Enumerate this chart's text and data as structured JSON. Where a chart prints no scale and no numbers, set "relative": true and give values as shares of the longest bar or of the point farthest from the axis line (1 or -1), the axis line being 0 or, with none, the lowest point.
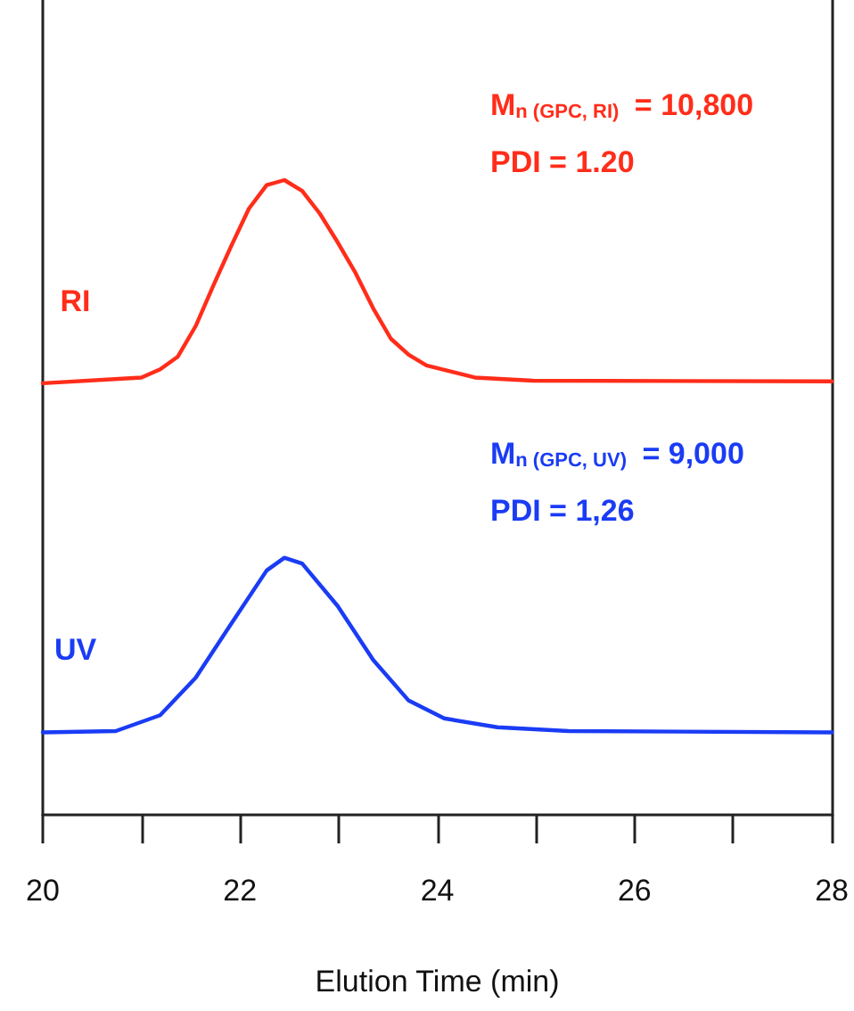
{
  "chart_data": {
    "type": "line",
    "relative": true,
    "xlabel": "Elution Time (min)",
    "xlim": [
      20,
      28
    ],
    "xticks": [
      20,
      {
        "value": 21,
        "label": null
      },
      22,
      {
        "value": 23,
        "label": null
      },
      24,
      {
        "value": 25,
        "label": null
      },
      26,
      {
        "value": 27,
        "label": null
      },
      28
    ],
    "grid": false,
    "legend": false,
    "marker": "none",
    "line_style": "solid",
    "series": [
      {
        "name": "RI",
        "color": "#ff2d1a",
        "x": [
          20,
          21,
          21.19,
          21.37,
          21.55,
          21.73,
          21.91,
          22.09,
          22.27,
          22.45,
          22.63,
          22.81,
          22.99,
          23.17,
          23.35,
          23.53,
          23.71,
          23.89,
          24.38,
          24.97,
          28
        ],
        "values": [
          0.68,
          0.689,
          0.702,
          0.722,
          0.77,
          0.834,
          0.896,
          0.955,
          0.992,
          1,
          0.983,
          0.947,
          0.902,
          0.854,
          0.798,
          0.75,
          0.725,
          0.708,
          0.689,
          0.684,
          0.683
        ]
      },
      {
        "name": "UV",
        "color": "#1a3cf5",
        "x": [
          20,
          20.74,
          21.19,
          21.55,
          21.91,
          22.27,
          22.45,
          22.63,
          22.99,
          23.35,
          23.71,
          24.07,
          24.61,
          25.33,
          28
        ],
        "values": [
          0.13,
          0.132,
          0.157,
          0.216,
          0.301,
          0.385,
          0.405,
          0.396,
          0.329,
          0.244,
          0.18,
          0.152,
          0.138,
          0.132,
          0.13
        ]
      }
    ],
    "annotations": [
      "M$_{n (GPC, RI)}$ = 10,800",
      "PDI = 1.20",
      "M$_{n (GPC, UV)}$ = 9,000",
      "PDI = 1,26"
    ]
  }
}
